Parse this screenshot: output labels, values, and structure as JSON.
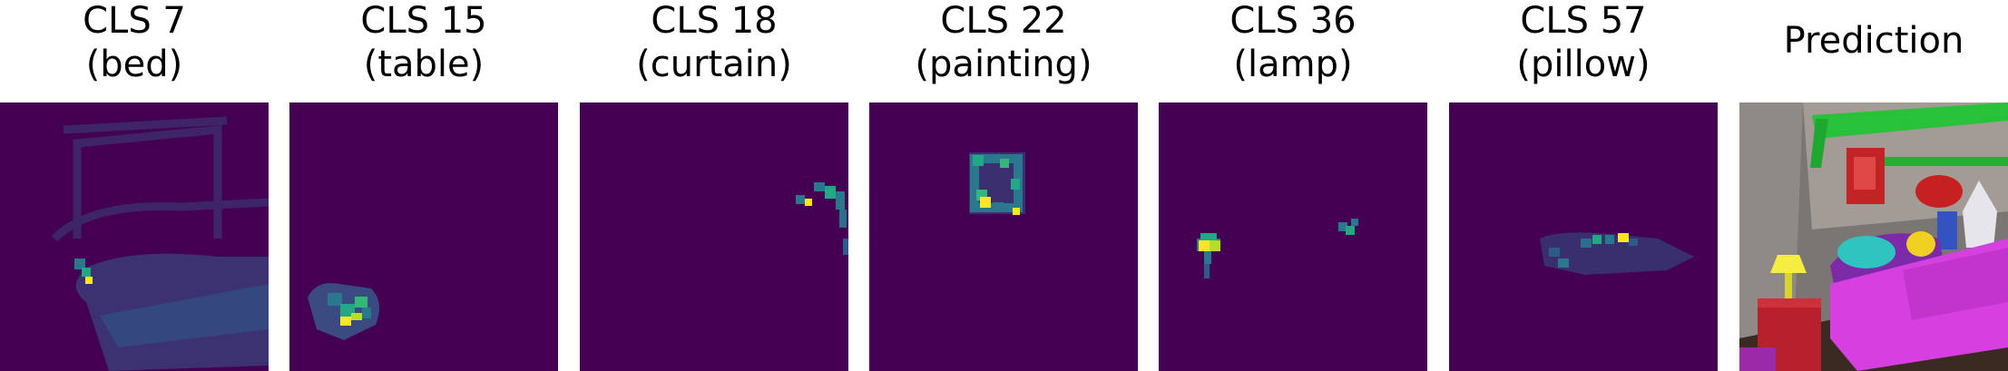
{
  "panels": [
    {
      "title_line1": "CLS 7",
      "title_line2": "(bed)"
    },
    {
      "title_line1": "CLS 15",
      "title_line2": "(table)"
    },
    {
      "title_line1": "CLS 18",
      "title_line2": "(curtain)"
    },
    {
      "title_line1": "CLS 22",
      "title_line2": "(painting)"
    },
    {
      "title_line1": "CLS 36",
      "title_line2": "(lamp)"
    },
    {
      "title_line1": "CLS 57",
      "title_line2": "(pillow)"
    }
  ],
  "prediction": {
    "title": "Prediction"
  },
  "colors": {
    "background": "#440154",
    "low": "#3b2d6e",
    "mid": "#2a788e",
    "high": "#22a884",
    "peak": "#fde725"
  }
}
